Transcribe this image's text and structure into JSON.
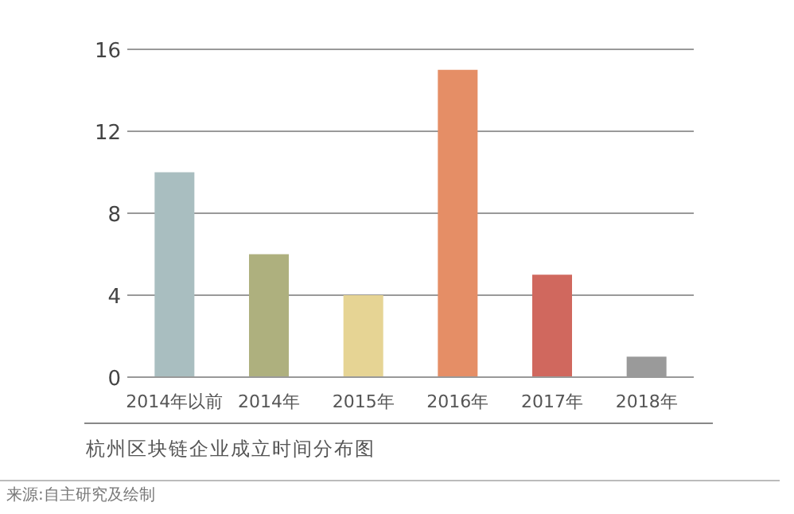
{
  "chart_data": {
    "type": "bar",
    "title": "杭州区块链企业成立时间分布图",
    "categories": [
      "2014年以前",
      "2014年",
      "2015年",
      "2016年",
      "2017年",
      "2018年"
    ],
    "values": [
      10,
      6,
      4,
      15,
      5,
      1
    ],
    "colors": [
      "#a9bec0",
      "#aeb07e",
      "#e6d494",
      "#e58e66",
      "#d0685e",
      "#9a9a9a"
    ],
    "ylim": [
      0,
      16
    ],
    "yticks": [
      0,
      4,
      8,
      12,
      16
    ],
    "grid": "y",
    "annotations": [
      "来源:自主研究及绘制"
    ]
  }
}
